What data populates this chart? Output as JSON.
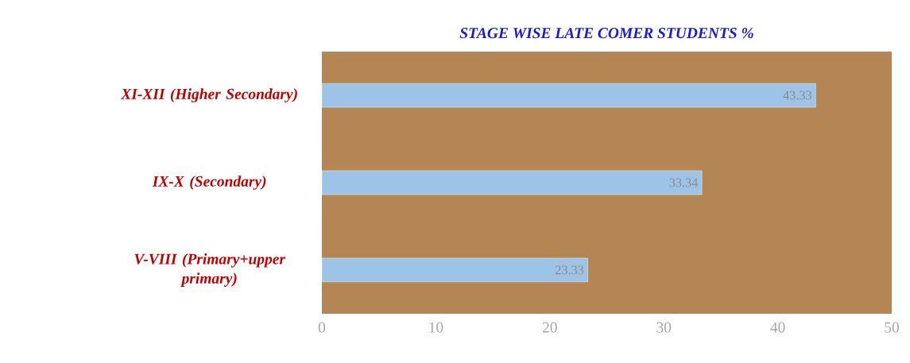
{
  "chart_data": {
    "type": "bar",
    "orientation": "horizontal",
    "title": "STAGE WISE LATE COMER STUDENTS %",
    "categories": [
      "XI-XII (Higher Secondary)",
      "IX-X (Secondary)",
      "V-VIII (Primary+upper primary)"
    ],
    "values": [
      43.33,
      33.34,
      23.33
    ],
    "color": "#9dc3e6",
    "xlim": [
      0,
      50
    ],
    "xticks": [
      0,
      10,
      20,
      30,
      40,
      50
    ],
    "data_labels": true
  }
}
